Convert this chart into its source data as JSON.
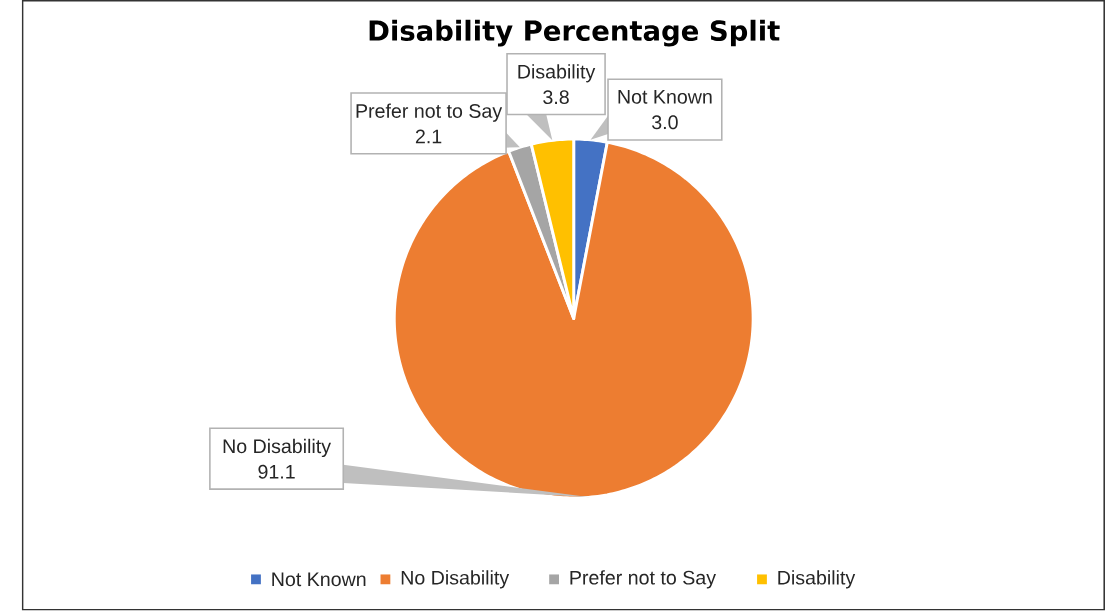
{
  "chart_data": {
    "type": "pie",
    "title": "Disability Percentage Split",
    "categories": [
      "Not Known",
      "No Disability",
      "Prefer not to Say",
      "Disability"
    ],
    "values": [
      3.0,
      91.1,
      2.1,
      3.8
    ],
    "colors": [
      "#4472c4",
      "#ed7d31",
      "#a5a5a5",
      "#ffc000"
    ],
    "value_labels": [
      "3.0",
      "91.1",
      "2.1",
      "3.8"
    ],
    "legend": "bottom"
  }
}
